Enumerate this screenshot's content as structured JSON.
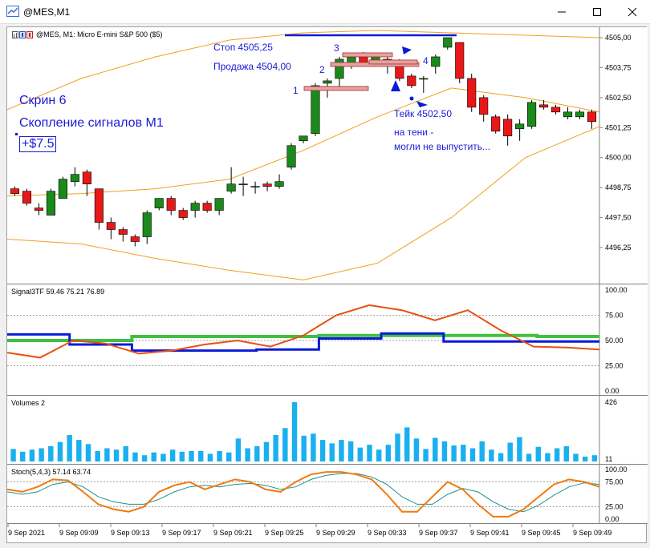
{
  "window": {
    "title": "@MES,M1",
    "controls": [
      "minimize",
      "maximize",
      "close"
    ]
  },
  "chart": {
    "symbol_line": "@MES, M1:  Micro E-mini S&P 500 ($5)",
    "price_axis": [
      "4505,00",
      "4503,75",
      "4502,50",
      "4501,25",
      "4500,00",
      "4498,75",
      "4497,50",
      "4496,25"
    ],
    "time_axis": [
      "9 Sep 2021",
      "9 Sep 09:09",
      "9 Sep 09:13",
      "9 Sep 09:17",
      "9 Sep 09:21",
      "9 Sep 09:25",
      "9 Sep 09:29",
      "9 Sep 09:33",
      "9 Sep 09:37",
      "9 Sep 09:41",
      "9 Sep 09:45",
      "9 Sep 09:49"
    ],
    "annotations": {
      "screen": "Скрин 6",
      "cluster": "Скопление сигналов М1",
      "profit": "+$7.5",
      "stop": "Стоп 4505,25",
      "sell": "Продажа 4504,00",
      "take": "Тейк 4502,50",
      "shadow_line1": "на тени -",
      "shadow_line2": "могли не выпустить...",
      "num1": "1",
      "num2": "2",
      "num3": "3",
      "num4": "4"
    }
  },
  "indicators": {
    "signal": {
      "label": "Signal3TF 59.46 75.21 76.89",
      "axis": [
        "100.00",
        "75.00",
        "50.00",
        "25.00",
        "0.00"
      ]
    },
    "volumes": {
      "label": "Volumes 2",
      "axis_top": "426",
      "axis_bottom": "11"
    },
    "stoch": {
      "label": "Stoch(5,4,3) 57.14 63.74",
      "axis": [
        "100.00",
        "75.00",
        "25.00",
        "0.00"
      ]
    }
  },
  "colors": {
    "bull": "#1a8a1a",
    "bear": "#e81818",
    "bands": "#f0a020",
    "signal_blue": "#0a1ad8",
    "signal_green": "#40c040",
    "signal_orange": "#e85010",
    "volume": "#1ab0f0",
    "stoch_main": "#f07a10",
    "stoch_signal": "#20908a",
    "annotation": "#1a1ad8"
  },
  "chart_data": {
    "type": "candlestick",
    "candles": [
      {
        "o": 4498.7,
        "h": 4498.8,
        "l": 4498.4,
        "c": 4498.5
      },
      {
        "o": 4498.6,
        "h": 4498.7,
        "l": 4498.0,
        "c": 4498.1
      },
      {
        "o": 4497.9,
        "h": 4498.1,
        "l": 4497.6,
        "c": 4497.8
      },
      {
        "o": 4497.6,
        "h": 4498.7,
        "l": 4497.6,
        "c": 4498.6
      },
      {
        "o": 4498.3,
        "h": 4499.2,
        "l": 4498.3,
        "c": 4499.1
      },
      {
        "o": 4499.0,
        "h": 4499.6,
        "l": 4498.8,
        "c": 4499.3
      },
      {
        "o": 4499.4,
        "h": 4499.5,
        "l": 4498.4,
        "c": 4498.9
      },
      {
        "o": 4498.7,
        "h": 4498.7,
        "l": 4497.0,
        "c": 4497.3
      },
      {
        "o": 4497.3,
        "h": 4497.5,
        "l": 4496.6,
        "c": 4497.0
      },
      {
        "o": 4497.0,
        "h": 4497.1,
        "l": 4496.5,
        "c": 4496.8
      },
      {
        "o": 4496.7,
        "h": 4496.8,
        "l": 4496.3,
        "c": 4496.5
      },
      {
        "o": 4496.7,
        "h": 4497.8,
        "l": 4496.4,
        "c": 4497.7
      },
      {
        "o": 4497.9,
        "h": 4498.3,
        "l": 4497.8,
        "c": 4498.3
      },
      {
        "o": 4498.3,
        "h": 4498.4,
        "l": 4497.6,
        "c": 4497.8
      },
      {
        "o": 4497.8,
        "h": 4497.9,
        "l": 4497.4,
        "c": 4497.5
      },
      {
        "o": 4497.8,
        "h": 4498.2,
        "l": 4497.5,
        "c": 4498.1
      },
      {
        "o": 4498.1,
        "h": 4498.2,
        "l": 4497.7,
        "c": 4497.8
      },
      {
        "o": 4497.8,
        "h": 4498.3,
        "l": 4497.6,
        "c": 4498.3
      },
      {
        "o": 4498.6,
        "h": 4499.6,
        "l": 4498.5,
        "c": 4498.9
      },
      {
        "o": 4498.9,
        "h": 4499.2,
        "l": 4498.4,
        "c": 4498.9
      },
      {
        "o": 4498.8,
        "h": 4499.0,
        "l": 4498.5,
        "c": 4498.8
      },
      {
        "o": 4498.9,
        "h": 4499.0,
        "l": 4498.6,
        "c": 4498.8
      },
      {
        "o": 4498.8,
        "h": 4499.3,
        "l": 4498.7,
        "c": 4499.0
      },
      {
        "o": 4499.6,
        "h": 4500.6,
        "l": 4499.5,
        "c": 4500.5
      },
      {
        "o": 4500.7,
        "h": 4500.9,
        "l": 4500.6,
        "c": 4500.9
      },
      {
        "o": 4501.0,
        "h": 4503.1,
        "l": 4500.9,
        "c": 4503.0
      },
      {
        "o": 4503.1,
        "h": 4503.3,
        "l": 4502.5,
        "c": 4503.2
      },
      {
        "o": 4503.3,
        "h": 4504.2,
        "l": 4502.8,
        "c": 4504.1
      },
      {
        "o": 4503.9,
        "h": 4504.3,
        "l": 4503.7,
        "c": 4504.2
      },
      {
        "o": 4504.2,
        "h": 4504.4,
        "l": 4503.9,
        "c": 4503.9
      },
      {
        "o": 4504.0,
        "h": 4504.3,
        "l": 4503.8,
        "c": 4504.3
      },
      {
        "o": 4504.1,
        "h": 4504.3,
        "l": 4503.5,
        "c": 4504.0
      },
      {
        "o": 4504.0,
        "h": 4504.1,
        "l": 4503.2,
        "c": 4503.3
      },
      {
        "o": 4503.4,
        "h": 4503.5,
        "l": 4502.9,
        "c": 4503.0
      },
      {
        "o": 4503.3,
        "h": 4503.4,
        "l": 4502.7,
        "c": 4503.3
      },
      {
        "o": 4503.8,
        "h": 4504.3,
        "l": 4503.5,
        "c": 4504.2
      },
      {
        "o": 4504.6,
        "h": 4505.0,
        "l": 4504.5,
        "c": 4505.0
      },
      {
        "o": 4504.8,
        "h": 4504.8,
        "l": 4503.1,
        "c": 4503.3
      },
      {
        "o": 4503.3,
        "h": 4503.5,
        "l": 4501.9,
        "c": 4502.1
      },
      {
        "o": 4502.5,
        "h": 4502.6,
        "l": 4501.5,
        "c": 4501.8
      },
      {
        "o": 4501.7,
        "h": 4501.8,
        "l": 4501.0,
        "c": 4501.1
      },
      {
        "o": 4501.6,
        "h": 4501.8,
        "l": 4500.5,
        "c": 4500.9
      },
      {
        "o": 4501.2,
        "h": 4501.6,
        "l": 4500.7,
        "c": 4501.4
      },
      {
        "o": 4501.3,
        "h": 4502.4,
        "l": 4501.2,
        "c": 4502.3
      },
      {
        "o": 4502.2,
        "h": 4502.4,
        "l": 4502.0,
        "c": 4502.1
      },
      {
        "o": 4502.1,
        "h": 4502.2,
        "l": 4501.8,
        "c": 4501.9
      },
      {
        "o": 4501.7,
        "h": 4502.1,
        "l": 4501.6,
        "c": 4501.9
      },
      {
        "o": 4501.7,
        "h": 4502.0,
        "l": 4501.6,
        "c": 4501.9
      },
      {
        "o": 4501.9,
        "h": 4502.0,
        "l": 4501.2,
        "c": 4501.5
      }
    ],
    "bb_upper": [
      4502.0,
      4503.3,
      4504.2,
      4504.9,
      4505.2,
      4505.3,
      4505.2,
      4505.1,
      4505.0
    ],
    "bb_middle": [
      4498.4,
      4498.5,
      4498.7,
      4499.1,
      4500.3,
      4501.7,
      4502.9,
      4502.5,
      4501.9
    ],
    "bb_lower": [
      4496.6,
      4496.4,
      4495.8,
      4495.3,
      4494.9,
      4495.6,
      4497.5,
      4500.0,
      4501.3
    ],
    "signal_orange": [
      38,
      33,
      50,
      47,
      37,
      40,
      46,
      50,
      44,
      55,
      75,
      85,
      80,
      70,
      80,
      60,
      44,
      43,
      41
    ],
    "signal_blue": [
      56,
      56,
      46,
      46,
      40,
      40,
      40,
      40,
      41,
      41,
      52,
      52,
      57,
      57,
      49,
      49,
      49,
      49,
      49
    ],
    "signal_green": [
      50,
      50,
      50,
      50,
      54,
      54,
      54,
      54,
      54,
      54,
      55,
      55,
      55,
      55,
      55,
      55,
      55,
      54,
      54
    ],
    "volumes": [
      90,
      70,
      85,
      95,
      110,
      140,
      190,
      155,
      125,
      75,
      95,
      85,
      110,
      65,
      45,
      65,
      55,
      85,
      70,
      75,
      75,
      55,
      75,
      65,
      165,
      95,
      110,
      140,
      190,
      240,
      426,
      185,
      200,
      155,
      130,
      155,
      145,
      100,
      120,
      85,
      120,
      200,
      245,
      165,
      90,
      170,
      145,
      115,
      120,
      95,
      145,
      85,
      60,
      135,
      175,
      55,
      105,
      60,
      95,
      110,
      55,
      35,
      45
    ],
    "stoch_main": [
      60,
      55,
      65,
      80,
      78,
      55,
      30,
      20,
      15,
      25,
      55,
      68,
      75,
      60,
      70,
      80,
      75,
      60,
      55,
      75,
      90,
      95,
      95,
      90,
      80,
      50,
      15,
      15,
      45,
      75,
      60,
      30,
      5,
      5,
      20,
      45,
      70,
      80,
      75,
      65
    ],
    "stoch_signal": [
      55,
      50,
      55,
      70,
      75,
      65,
      45,
      35,
      30,
      30,
      40,
      55,
      65,
      68,
      65,
      70,
      72,
      68,
      60,
      65,
      80,
      88,
      92,
      92,
      85,
      70,
      45,
      30,
      30,
      50,
      62,
      55,
      35,
      20,
      15,
      28,
      48,
      65,
      73,
      70
    ]
  }
}
